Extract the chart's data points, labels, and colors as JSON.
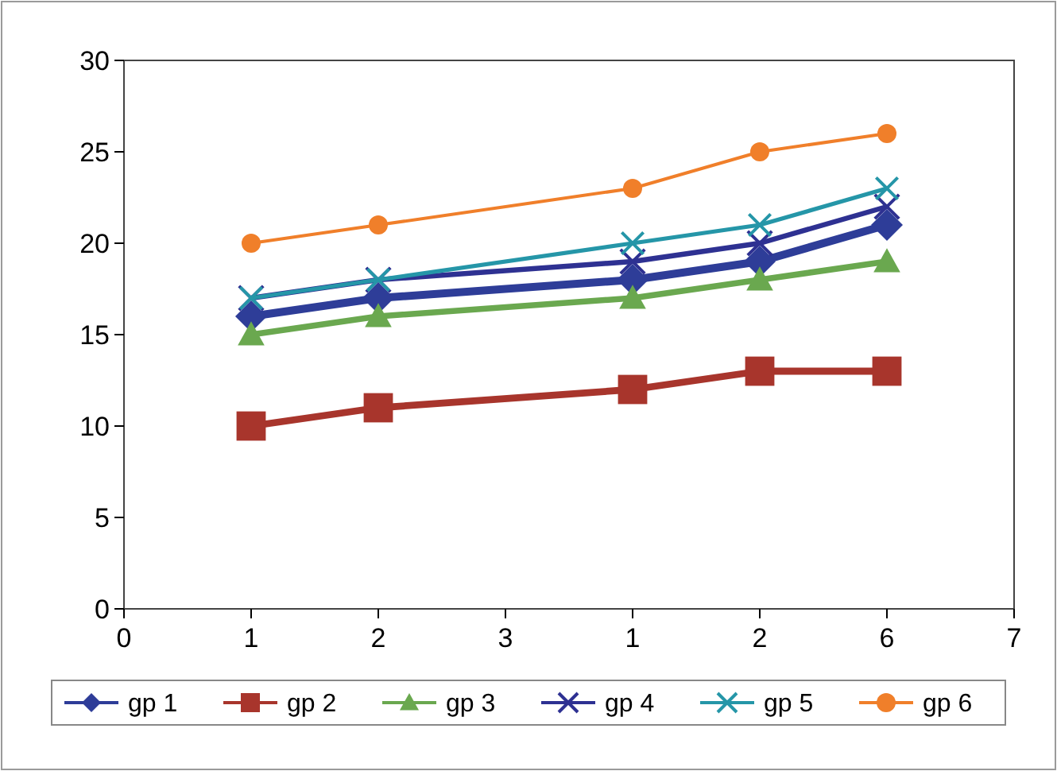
{
  "chart_data": {
    "type": "line",
    "categories": [
      "0",
      "1",
      "2",
      "3",
      "1",
      "2",
      "6",
      "7"
    ],
    "ylim": [
      0,
      30
    ],
    "yticks": [
      0,
      5,
      10,
      15,
      20,
      25,
      30
    ],
    "legend": "bottom",
    "grid": false,
    "series": [
      {
        "name": "gp 1",
        "color": "#2e3d98",
        "marker": "diamond",
        "values": [
          null,
          16,
          17,
          null,
          18,
          19,
          21,
          null
        ]
      },
      {
        "name": "gp 2",
        "color": "#a8352c",
        "marker": "square",
        "values": [
          null,
          10,
          11,
          null,
          12,
          13,
          13,
          null
        ]
      },
      {
        "name": "gp 3",
        "color": "#6aa84f",
        "marker": "triangle",
        "values": [
          null,
          15,
          16,
          null,
          17,
          18,
          19,
          null
        ]
      },
      {
        "name": "gp 4",
        "color": "#2e3192",
        "marker": "cross",
        "values": [
          null,
          17,
          18,
          null,
          19,
          20,
          22,
          null
        ]
      },
      {
        "name": "gp 5",
        "color": "#2596a8",
        "marker": "cross",
        "values": [
          null,
          17,
          18,
          null,
          20,
          21,
          23,
          null
        ]
      },
      {
        "name": "gp 6",
        "color": "#f07f2a",
        "marker": "circle",
        "values": [
          null,
          20,
          21,
          null,
          23,
          25,
          26,
          null
        ]
      }
    ]
  }
}
